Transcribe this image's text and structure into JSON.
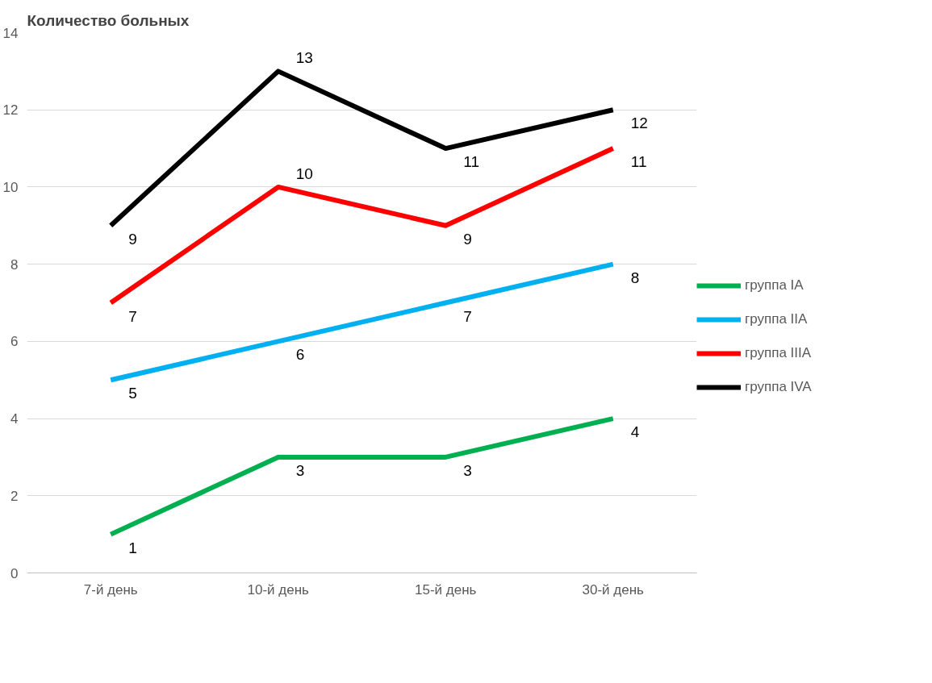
{
  "chart_data": {
    "type": "line",
    "title": "Количество  больных",
    "categories": [
      "7-й день",
      "10-й день",
      "15-й день",
      "30-й день"
    ],
    "series": [
      {
        "name": "группа IA",
        "color": "#00b050",
        "values": [
          1,
          3,
          3,
          4
        ]
      },
      {
        "name": "группа IIA",
        "color": "#00b0f0",
        "values": [
          5,
          6,
          7,
          8
        ]
      },
      {
        "name": "группа IIIA",
        "color": "#ff0000",
        "values": [
          7,
          10,
          9,
          11
        ]
      },
      {
        "name": "группа IVA",
        "color": "#000000",
        "values": [
          9,
          13,
          11,
          12
        ]
      }
    ],
    "ylim": [
      0,
      14
    ],
    "yticks": [
      0,
      2,
      4,
      6,
      8,
      10,
      12,
      14
    ],
    "grid": "y",
    "legend": "right",
    "data_labels": true,
    "marker": "none",
    "line_style": "solid"
  }
}
